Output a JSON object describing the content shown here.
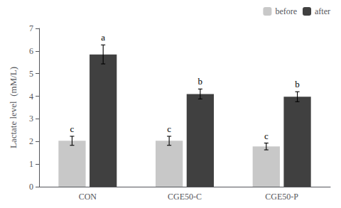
{
  "chart_data": {
    "type": "bar",
    "categories": [
      "CON",
      "CGE50-C",
      "CGE50-P"
    ],
    "series": [
      {
        "name": "before",
        "color": "#c8c8c8",
        "values": [
          2.03,
          2.03,
          1.78
        ],
        "errors": [
          0.2,
          0.2,
          0.15
        ],
        "significance": [
          "c",
          "c",
          "c"
        ]
      },
      {
        "name": "after",
        "color": "#404040",
        "values": [
          5.85,
          4.1,
          3.98
        ],
        "errors": [
          0.42,
          0.22,
          0.22
        ],
        "significance": [
          "a",
          "b",
          "b"
        ]
      }
    ],
    "ylabel": "Lactate level  (mM/L)",
    "ylim": [
      0,
      7
    ],
    "yticks": [
      0,
      1,
      2,
      3,
      4,
      5,
      6,
      7
    ],
    "grid": false,
    "legend": "upper right"
  }
}
